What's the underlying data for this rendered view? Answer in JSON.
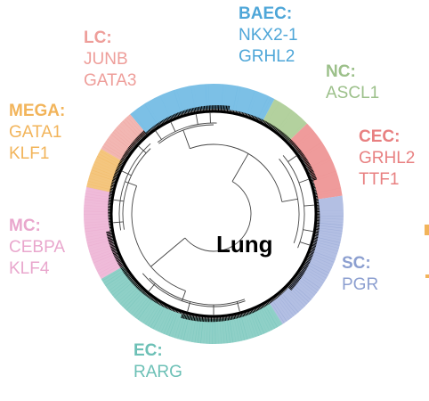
{
  "center_title": "Lung",
  "clusters": [
    {
      "name": "BAEC:",
      "genes": [
        "NKX2-1",
        "GRHL2"
      ],
      "color": "#4ea6d8",
      "ring_color": "#7cc0e6"
    },
    {
      "name": "NC:",
      "genes": [
        "ASCL1"
      ],
      "color": "#9cc08a",
      "ring_color": "#b3d19e"
    },
    {
      "name": "CEC:",
      "genes": [
        "GRHL2",
        "TTF1"
      ],
      "color": "#e88081",
      "ring_color": "#ef9b9b"
    },
    {
      "name": "SC:",
      "genes": [
        "PGR"
      ],
      "color": "#8c9fd0",
      "ring_color": "#b3bfe3"
    },
    {
      "name": "EC:",
      "genes": [
        "RARG"
      ],
      "color": "#6cc0b6",
      "ring_color": "#8fd0c7"
    },
    {
      "name": "MC:",
      "genes": [
        "CEBPA",
        "KLF4"
      ],
      "color": "#e9a7cd",
      "ring_color": "#efbbd9"
    },
    {
      "name": "MEGA:",
      "genes": [
        "GATA1",
        "KLF1"
      ],
      "color": "#f2b45a",
      "ring_color": "#f4c67f"
    },
    {
      "name": "LC:",
      "genes": [
        "JUNB",
        "GATA3"
      ],
      "color": "#ee9e9a",
      "ring_color": "#f2b7b3"
    }
  ]
}
